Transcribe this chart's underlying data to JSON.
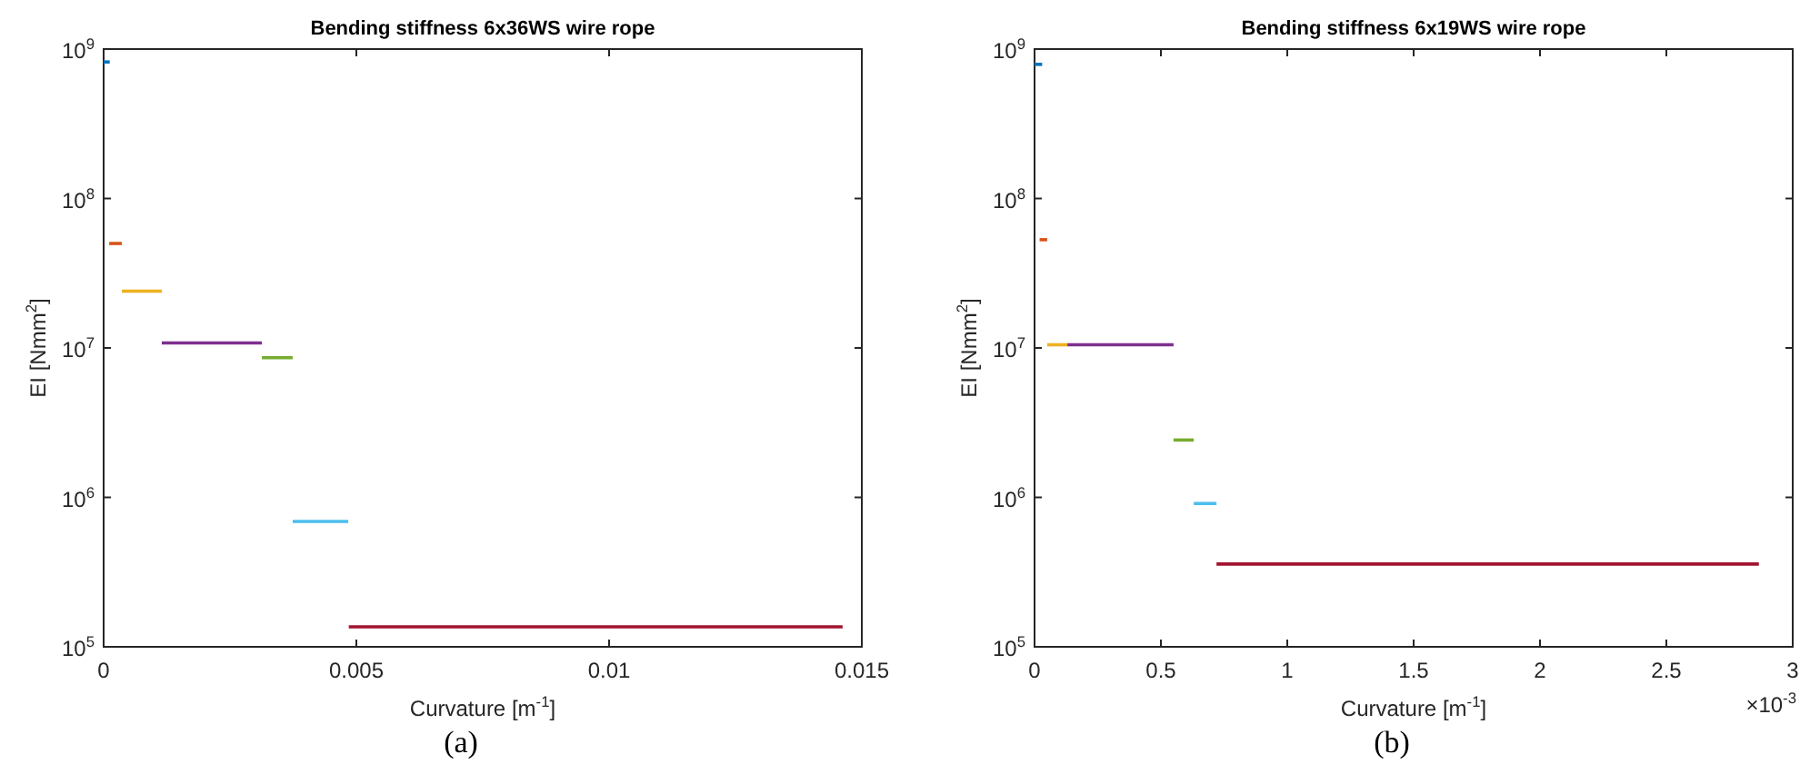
{
  "chart_data": [
    {
      "type": "line",
      "title": "Bending stiffness 6x36WS wire rope",
      "xlabel": "Curvature [m$^{-1}$]",
      "ylabel": "EI [Nmm$^{2}$]",
      "log": "y",
      "marker": "none",
      "line_style": "solid",
      "xlim": [
        0,
        0.015
      ],
      "xticks": [
        0,
        0.005,
        0.01,
        0.015
      ],
      "ylim": [
        100000,
        1000000000
      ],
      "yticks": [
        {
          "value": 100000,
          "label": "10$^{5}$"
        },
        {
          "value": 1000000,
          "label": "10$^{6}$"
        },
        {
          "value": 10000000,
          "label": "10$^{7}$"
        },
        {
          "value": 100000000,
          "label": "10$^{8}$"
        },
        {
          "value": 1000000000,
          "label": "10$^{9}$"
        }
      ],
      "annotations": [
        "(a)"
      ],
      "series": [
        {
          "color": "#0072bd",
          "x": [
            0,
            0.00012
          ],
          "values": [
            820000000,
            820000000
          ]
        },
        {
          "color": "#d95319",
          "x": [
            0.00011,
            0.00036
          ],
          "values": [
            50000000,
            50000000
          ]
        },
        {
          "color": "#edb120",
          "x": [
            0.00036,
            0.00115
          ],
          "values": [
            24000000,
            24000000
          ]
        },
        {
          "color": "#7e2f8e",
          "x": [
            0.00115,
            0.00313
          ],
          "values": [
            10800000,
            10800000
          ]
        },
        {
          "color": "#77ac30",
          "x": [
            0.00313,
            0.00374
          ],
          "values": [
            8600000,
            8600000
          ]
        },
        {
          "color": "#4dbeee",
          "x": [
            0.00374,
            0.00484
          ],
          "values": [
            690000,
            690000
          ]
        },
        {
          "color": "#a2142f",
          "x": [
            0.00485,
            0.01462
          ],
          "values": [
            136000,
            136000
          ]
        }
      ]
    },
    {
      "type": "line",
      "title": "Bending stiffness 6x19WS wire rope",
      "xlabel": "Curvature [m$^{-1}$]",
      "ylabel": "EI [Nmm$^{2}$]",
      "log": "y",
      "marker": "none",
      "line_style": "solid",
      "xlim": [
        0,
        3
      ],
      "xticks": [
        0,
        0.5,
        1,
        1.5,
        2,
        2.5,
        3
      ],
      "ylim": [
        100000,
        1000000000
      ],
      "yticks": [
        {
          "value": 100000,
          "label": "10$^{5}$"
        },
        {
          "value": 1000000,
          "label": "10$^{6}$"
        },
        {
          "value": 10000000,
          "label": "10$^{7}$"
        },
        {
          "value": 100000000,
          "label": "10$^{8}$"
        },
        {
          "value": 1000000000,
          "label": "10$^{9}$"
        }
      ],
      "annotations": [
        "×10$^{-3}$",
        "(b)"
      ],
      "series": [
        {
          "color": "#0072bd",
          "x": [
            0,
            0.03
          ],
          "values": [
            790000000,
            790000000
          ]
        },
        {
          "color": "#d95319",
          "x": [
            0.02,
            0.05
          ],
          "values": [
            53000000,
            53000000
          ]
        },
        {
          "color": "#edb120",
          "x": [
            0.05,
            0.13
          ],
          "values": [
            10500000,
            10500000
          ]
        },
        {
          "color": "#7e2f8e",
          "x": [
            0.13,
            0.55
          ],
          "values": [
            10500000,
            10500000
          ]
        },
        {
          "color": "#77ac30",
          "x": [
            0.55,
            0.63
          ],
          "values": [
            2420000,
            2420000
          ]
        },
        {
          "color": "#4dbeee",
          "x": [
            0.63,
            0.72
          ],
          "values": [
            910000,
            910000
          ]
        },
        {
          "color": "#a2142f",
          "x": [
            0.72,
            2.866
          ],
          "values": [
            358000,
            358000
          ]
        }
      ]
    }
  ]
}
